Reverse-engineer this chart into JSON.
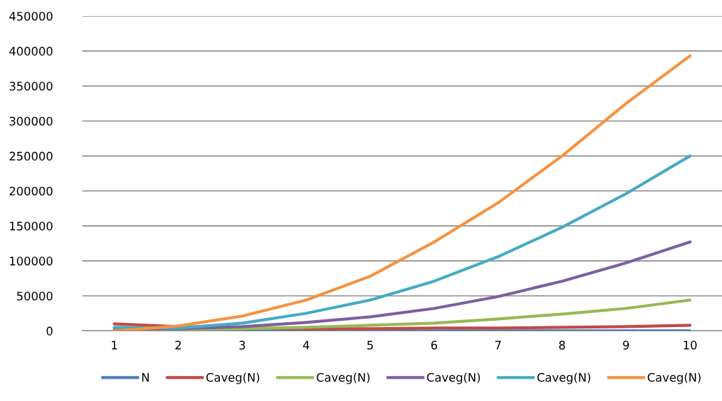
{
  "chart_data": {
    "type": "line",
    "categories": [
      "1",
      "2",
      "3",
      "4",
      "5",
      "6",
      "7",
      "8",
      "9",
      "10"
    ],
    "series": [
      {
        "name": "N",
        "color": "#4a7ebb",
        "values": [
          0,
          0,
          0,
          0,
          0,
          0,
          0,
          0,
          0,
          0
        ]
      },
      {
        "name": "Caveg(N)",
        "color": "#be4b48",
        "values": [
          10000,
          6000,
          4000,
          3000,
          3000,
          4000,
          4000,
          5000,
          6000,
          8000
        ]
      },
      {
        "name": "Caveg(N)",
        "color": "#98b954",
        "values": [
          1000,
          1500,
          3000,
          5000,
          8000,
          11000,
          17000,
          24000,
          32000,
          44000
        ]
      },
      {
        "name": "Caveg(N)",
        "color": "#7d5fa0",
        "values": [
          3000,
          3000,
          6000,
          12000,
          20000,
          32000,
          49000,
          71000,
          97000,
          127000
        ]
      },
      {
        "name": "Caveg(N)",
        "color": "#46aac5",
        "values": [
          5000,
          4000,
          11000,
          25000,
          44000,
          71000,
          106000,
          148000,
          196000,
          250000
        ]
      },
      {
        "name": "Caveg(N)",
        "color": "#f69240",
        "values": [
          0,
          7000,
          21000,
          44000,
          78000,
          127000,
          183000,
          250000,
          325000,
          393000
        ]
      }
    ],
    "ylim": [
      0,
      450000
    ],
    "yticks": [
      0,
      50000,
      100000,
      150000,
      200000,
      250000,
      300000,
      350000,
      400000,
      450000
    ],
    "grid": "y",
    "legend": "bottom",
    "marker": "none",
    "line_style": "solid"
  }
}
